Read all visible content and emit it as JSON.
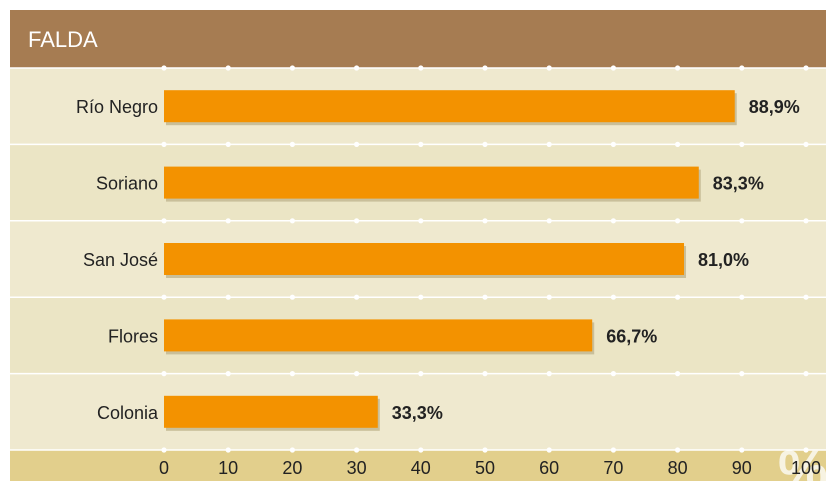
{
  "chart_data": {
    "type": "bar",
    "orientation": "horizontal",
    "title": "FALDA",
    "categories": [
      "Río Negro",
      "Soriano",
      "San José",
      "Flores",
      "Colonia"
    ],
    "values": [
      88.9,
      83.3,
      81.0,
      66.7,
      33.3
    ],
    "value_labels": [
      "88,9%",
      "83,3%",
      "81,0%",
      "66,7%",
      "33,3%"
    ],
    "xlim": [
      0,
      100
    ],
    "x_ticks": [
      "0",
      "10",
      "20",
      "30",
      "40",
      "50",
      "60",
      "70",
      "80",
      "90",
      "100"
    ],
    "unit_watermark": "%",
    "grid": true
  },
  "colors": {
    "header_bg": "#a67c52",
    "header_text": "#ffffff",
    "panel_bg": "#efe9cf",
    "band_light": "#ebe5c5",
    "axis_bg": "#e2cf8c",
    "bar": "#f39200",
    "bar_shadow": "#c9bf9a",
    "text": "#222222",
    "grid": "#ffffff"
  }
}
